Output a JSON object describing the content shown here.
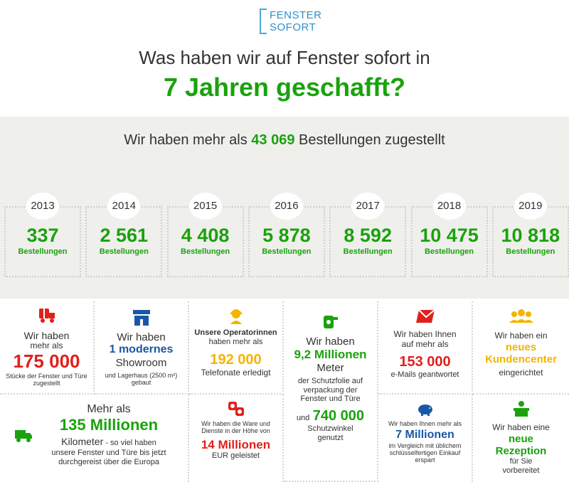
{
  "logo": {
    "line1": "FENSTER",
    "line2": "SOFORT"
  },
  "header": {
    "title_line1": "Was haben wir auf Fenster sofort in",
    "title_line2": "7 Jahren geschafft?"
  },
  "orders": {
    "prefix": "Wir haben mehr als",
    "highlight": "43 069",
    "suffix": "Bestellungen zugestellt"
  },
  "years": [
    {
      "year": "2013",
      "value": "337",
      "unit": "Bestellungen"
    },
    {
      "year": "2014",
      "value": "2 561",
      "unit": "Bestellungen"
    },
    {
      "year": "2015",
      "value": "4 408",
      "unit": "Bestellungen"
    },
    {
      "year": "2016",
      "value": "5 878",
      "unit": "Bestellungen"
    },
    {
      "year": "2017",
      "value": "8 592",
      "unit": "Bestellungen"
    },
    {
      "year": "2018",
      "value": "10 475",
      "unit": "Bestellungen"
    },
    {
      "year": "2019",
      "value": "10 818",
      "unit": "Bestellungen"
    }
  ],
  "stats": {
    "windows": {
      "l1": "Wir haben",
      "l2": "mehr als",
      "num": "175 000",
      "l3": "Stücke der Fenster und Türe",
      "l4": "zugestellt"
    },
    "showroom": {
      "l1": "Wir haben",
      "num": "1 modernes",
      "l2": "Showroom",
      "l3": "und Lagerhaus (2500 m²)",
      "l4": "gebaut"
    },
    "calls": {
      "l1": "Unsere Operatorinnen",
      "l2": "haben mehr als",
      "num": "192 000",
      "l3": "Telefonate erledigt"
    },
    "foil": {
      "l1": "Wir haben",
      "num": "9,2 Millionen",
      "l2": "Meter",
      "l3": "der Schutzfolie auf",
      "l4": "verpackung der",
      "l5": "Fenster und Türe",
      "l6_prefix": "und",
      "num2": "740 000",
      "l7": "Schutzwinkel",
      "l8": "genutzt"
    },
    "emails": {
      "l1": "Wir haben Ihnen",
      "l2": "auf mehr als",
      "num": "153 000",
      "l3": "e-Mails geantwortet"
    },
    "center": {
      "l1": "Wir haben ein",
      "num1": "neues",
      "num2": "Kundencenter",
      "l2": "eingerichtet"
    },
    "km": {
      "l1": "Mehr als",
      "num": "135 Millionen",
      "l2": "Kilometer",
      "l2b": " - so viel haben",
      "l3": "unsere Fenster und Türe bis jetzt",
      "l4": "durchgereist über die Europa"
    },
    "goods": {
      "l1": "Wir haben die Ware und",
      "l2": "Dienste in der Höhe von",
      "num": "14 Millionen",
      "l3": "EUR geleistet"
    },
    "savings": {
      "l1": "Wir haben Ihnen mehr als",
      "num": "7 Millionen",
      "l2": "im Vergleich mit üblichem",
      "l3": "schlüsselfertigen Einkauf",
      "l4": "erspart"
    },
    "reception": {
      "l1": "Wir haben eine",
      "num1": "neue",
      "num2": "Rezeption",
      "l2": "für Sie",
      "l3": "vorbereitet"
    }
  },
  "icons": {
    "truck": "delivery-truck-icon",
    "building": "building-icon",
    "headset": "operator-headset-icon",
    "roll": "foil-roll-icon",
    "mail": "email-icon",
    "people": "team-icon",
    "lorry": "lorry-icon",
    "money": "money-exchange-icon",
    "piggy": "piggy-bank-icon",
    "desk": "reception-desk-icon"
  },
  "colors": {
    "green": "#1aa20d",
    "red": "#e0201b",
    "blue": "#1957a6",
    "yellow": "#f4b400",
    "grey_band": "#efefec"
  }
}
